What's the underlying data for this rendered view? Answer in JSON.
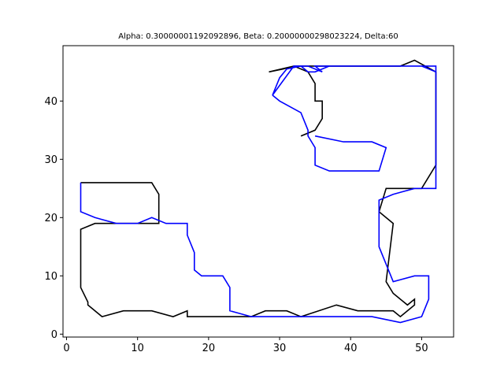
{
  "chart_data": {
    "type": "line",
    "title": "Alpha: 0.30000001192092896, Beta: 0.20000000298023224, Delta:60",
    "xlabel": "",
    "ylabel": "",
    "xlim": [
      -0.5,
      54.5
    ],
    "ylim": [
      -0.5,
      49.5
    ],
    "xticks": [
      0,
      10,
      20,
      30,
      40,
      50
    ],
    "yticks": [
      0,
      10,
      20,
      30,
      40
    ],
    "grid": false,
    "series": [
      {
        "color": "#000000",
        "x": [
          33,
          35,
          36,
          36,
          35,
          35,
          34,
          32,
          28.5,
          30.5,
          32,
          34,
          36,
          38,
          40,
          44,
          47,
          49,
          52,
          52,
          50,
          47,
          45,
          44,
          46,
          45,
          45,
          46,
          48,
          49,
          49,
          47,
          46,
          41,
          38,
          33,
          31,
          28,
          26,
          17,
          17,
          15,
          12,
          8,
          5,
          3,
          3,
          2,
          2,
          4,
          13,
          13,
          12,
          2
        ],
        "y": [
          34,
          35,
          37,
          40,
          40,
          43,
          45,
          46,
          45,
          45.5,
          46,
          46,
          46,
          46,
          46,
          46,
          46,
          47,
          45,
          29,
          25,
          25,
          25,
          21,
          19,
          9,
          9,
          7,
          5,
          6,
          5,
          3,
          4,
          4,
          5,
          3,
          4,
          4,
          3,
          3,
          4,
          3,
          4,
          4,
          3,
          5,
          5.5,
          8,
          18,
          19,
          19,
          24,
          26,
          26
        ]
      },
      {
        "color": "#0000ff",
        "x": [
          2,
          2,
          4,
          7,
          10,
          12,
          14,
          17,
          17,
          18,
          18,
          19,
          22,
          23,
          23,
          26,
          33,
          41,
          43,
          47,
          50,
          51,
          51,
          49,
          46,
          44,
          44,
          44,
          46,
          49,
          52,
          52,
          52,
          50,
          44,
          38,
          35,
          36,
          36,
          35,
          34,
          33,
          33,
          32,
          29,
          30,
          31,
          33,
          34,
          35,
          37,
          39,
          52,
          52
        ],
        "y": [
          26,
          21,
          20,
          19,
          19,
          20,
          19,
          19,
          17,
          14,
          11,
          10,
          10,
          8,
          4,
          3,
          3,
          3,
          3,
          2,
          3,
          6,
          10,
          10,
          9,
          15,
          20,
          23,
          24,
          25,
          25,
          29,
          45,
          46,
          46,
          46,
          46,
          45,
          45,
          45.5,
          46,
          46,
          46,
          46,
          41,
          44,
          45.5,
          46,
          45,
          45,
          46,
          46,
          46,
          45
        ]
      },
      {
        "color": "#0000ff",
        "x": [
          35,
          39,
          43,
          45,
          44,
          43,
          37,
          35,
          35,
          34,
          34,
          33,
          30,
          29
        ],
        "y": [
          34,
          33,
          33,
          32,
          28,
          28,
          28,
          29,
          32,
          34,
          35,
          38,
          40,
          41
        ]
      }
    ]
  }
}
